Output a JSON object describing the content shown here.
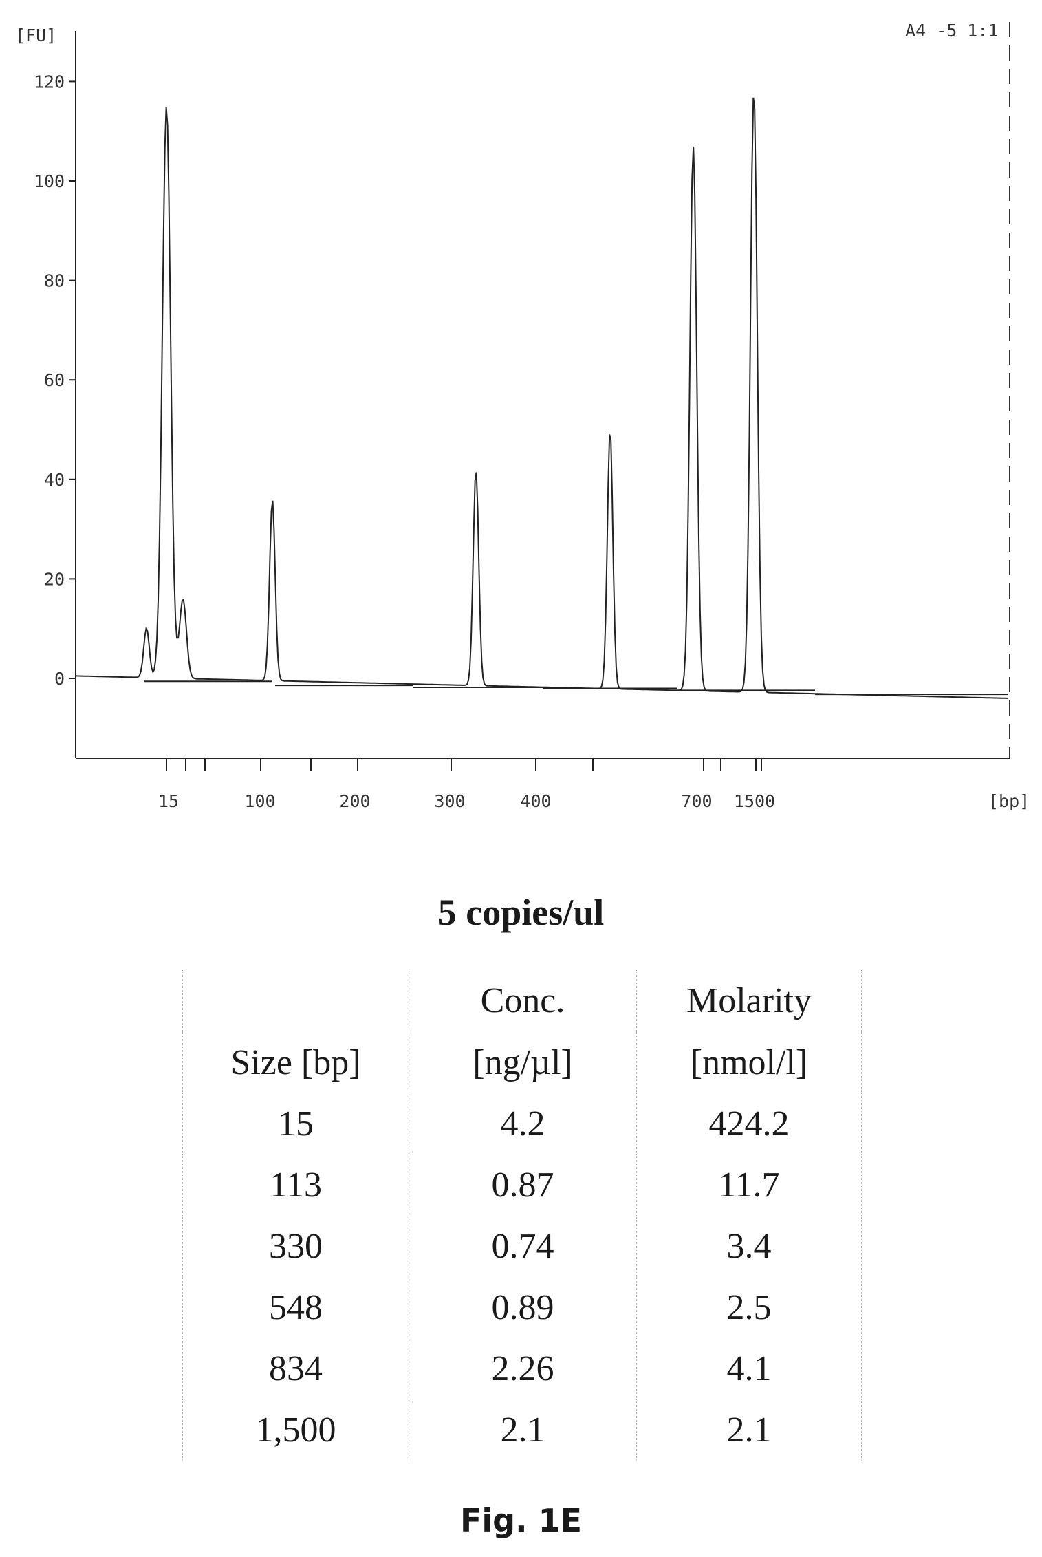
{
  "chart_data": {
    "type": "line",
    "title": "",
    "sample_label": "A4 -5 1:1",
    "ylabel": "[FU]",
    "xlabel": "[bp]",
    "ylim": [
      -16,
      131
    ],
    "y_ticks": [
      0,
      20,
      40,
      60,
      80,
      100,
      120
    ],
    "x_tick_labels": [
      "15",
      "100",
      "200",
      "300",
      "400",
      "700",
      "1500"
    ],
    "peaks": [
      {
        "size_bp": 15,
        "height_fu": 115
      },
      {
        "size_bp": 113,
        "height_fu": 36
      },
      {
        "size_bp": 330,
        "height_fu": 42
      },
      {
        "size_bp": 548,
        "height_fu": 50
      },
      {
        "size_bp": 834,
        "height_fu": 107
      },
      {
        "size_bp": 1500,
        "height_fu": 118
      }
    ],
    "minor_peaks": [
      {
        "label": "shoulder before 15",
        "height_fu": 10
      },
      {
        "label": "shoulder after 15",
        "height_fu": 16
      }
    ],
    "baseline": {
      "start_fu": 0.5,
      "end_fu": -4
    }
  },
  "subtitle": "5 copies/ul",
  "table": {
    "headers": {
      "size_line1": "",
      "size_line2": "Size [bp]",
      "conc_line1": "Conc.",
      "conc_line2": "[ng/µl]",
      "mol_line1": "Molarity",
      "mol_line2": "[nmol/l]"
    },
    "rows": [
      {
        "size": "15",
        "conc": "4.2",
        "molarity": "424.2"
      },
      {
        "size": "113",
        "conc": "0.87",
        "molarity": "11.7"
      },
      {
        "size": "330",
        "conc": "0.74",
        "molarity": "3.4"
      },
      {
        "size": "548",
        "conc": "0.89",
        "molarity": "2.5"
      },
      {
        "size": "834",
        "conc": "2.26",
        "molarity": "4.1"
      },
      {
        "size": "1,500",
        "conc": "2.1",
        "molarity": "2.1"
      }
    ]
  },
  "figure_label": "Fig. 1E"
}
